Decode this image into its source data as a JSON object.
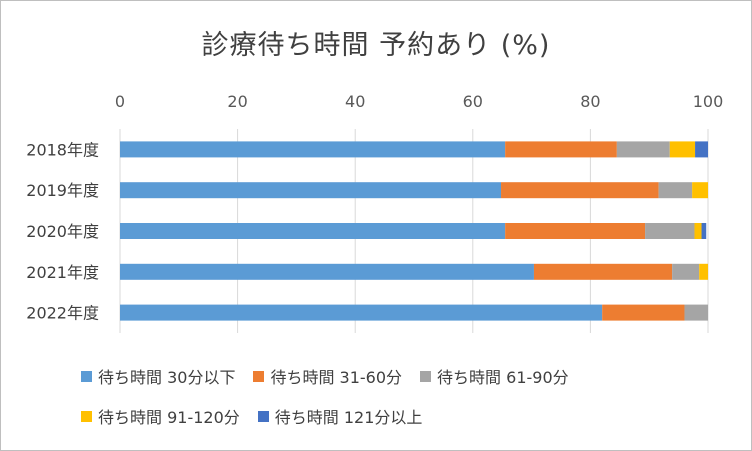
{
  "chart_data": {
    "type": "bar",
    "orientation": "horizontal",
    "stacked": true,
    "title": "診療待ち時間 予約あり (%)",
    "categories": [
      "2018年度",
      "2019年度",
      "2020年度",
      "2021年度",
      "2022年度"
    ],
    "series": [
      {
        "name": "待ち時間 30分以下",
        "color": "#5B9BD5",
        "values": [
          65.5,
          64.8,
          65.5,
          70.4,
          82.0
        ]
      },
      {
        "name": "待ち時間 31-60分",
        "color": "#ED7D31",
        "values": [
          19.0,
          26.8,
          23.8,
          23.5,
          14.0
        ]
      },
      {
        "name": "待ち時間 61-90分",
        "color": "#A5A5A5",
        "values": [
          9.0,
          5.7,
          8.4,
          4.6,
          4.0
        ]
      },
      {
        "name": "待ち時間 91-120分",
        "color": "#FFC000",
        "values": [
          4.3,
          2.7,
          1.2,
          1.5,
          0.0
        ]
      },
      {
        "name": "待ち時間 121分以上",
        "color": "#4472C4",
        "values": [
          2.2,
          0.0,
          0.8,
          0.0,
          0.0
        ]
      }
    ],
    "xlim": [
      0,
      100
    ],
    "xticks": [
      0,
      20,
      40,
      60,
      80,
      100
    ],
    "axis_position": "top",
    "grid": true,
    "legend_position": "bottom"
  }
}
